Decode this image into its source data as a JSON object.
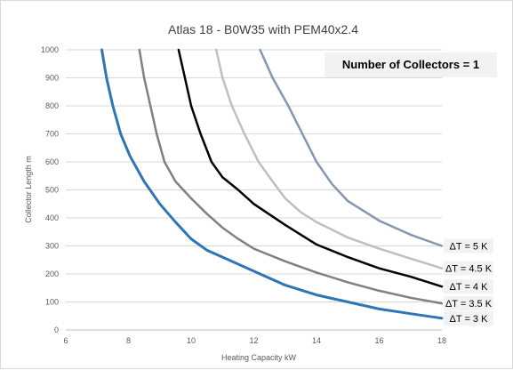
{
  "chart_data": {
    "type": "line",
    "title": "Atlas 18 - B0W35 with PEM40x2.4",
    "xlabel": "Heating Capacity  kW",
    "ylabel": "Collector Length  m",
    "xlim": [
      6,
      18
    ],
    "ylim": [
      0,
      1000
    ],
    "x_ticks": [
      "6",
      "8",
      "10",
      "12",
      "14",
      "16",
      "18"
    ],
    "y_ticks": [
      "0",
      "100",
      "200",
      "300",
      "400",
      "500",
      "600",
      "700",
      "800",
      "900",
      "1000"
    ],
    "grid": "horizontal",
    "annotation": "Number of Collectors = 1",
    "series": [
      {
        "name": "ΔT = 3 K",
        "color": "#2e75b6",
        "points": [
          [
            7.15,
            1000
          ],
          [
            7.3,
            900
          ],
          [
            7.5,
            800
          ],
          [
            7.75,
            700
          ],
          [
            8.05,
            620
          ],
          [
            8.5,
            530
          ],
          [
            9.0,
            450
          ],
          [
            9.5,
            385
          ],
          [
            10.0,
            325
          ],
          [
            10.5,
            285
          ],
          [
            11.0,
            260
          ],
          [
            12.0,
            210
          ],
          [
            13.0,
            160
          ],
          [
            14.0,
            125
          ],
          [
            15.0,
            100
          ],
          [
            16.0,
            75
          ],
          [
            17.0,
            58
          ],
          [
            18.0,
            42
          ]
        ]
      },
      {
        "name": "ΔT = 3.5 K",
        "color": "#808080",
        "points": [
          [
            8.35,
            1000
          ],
          [
            8.5,
            900
          ],
          [
            8.7,
            800
          ],
          [
            8.9,
            700
          ],
          [
            9.15,
            600
          ],
          [
            9.5,
            530
          ],
          [
            10.0,
            470
          ],
          [
            10.5,
            415
          ],
          [
            11.0,
            365
          ],
          [
            11.5,
            325
          ],
          [
            12.0,
            290
          ],
          [
            13.0,
            245
          ],
          [
            14.0,
            205
          ],
          [
            15.0,
            170
          ],
          [
            16.0,
            140
          ],
          [
            17.0,
            115
          ],
          [
            18.0,
            95
          ]
        ]
      },
      {
        "name": "ΔT = 4 K",
        "color": "#000000",
        "points": [
          [
            9.6,
            1000
          ],
          [
            9.8,
            900
          ],
          [
            10.0,
            800
          ],
          [
            10.3,
            700
          ],
          [
            10.65,
            600
          ],
          [
            11.0,
            545
          ],
          [
            11.5,
            500
          ],
          [
            12.0,
            450
          ],
          [
            13.0,
            375
          ],
          [
            14.0,
            305
          ],
          [
            15.0,
            260
          ],
          [
            16.0,
            220
          ],
          [
            17.0,
            190
          ],
          [
            18.0,
            155
          ]
        ]
      },
      {
        "name": "ΔT = 4.5 K",
        "color": "#bfbfbf",
        "points": [
          [
            10.8,
            1000
          ],
          [
            11.0,
            900
          ],
          [
            11.3,
            800
          ],
          [
            11.7,
            700
          ],
          [
            12.15,
            600
          ],
          [
            12.6,
            530
          ],
          [
            13.0,
            470
          ],
          [
            13.5,
            420
          ],
          [
            14.0,
            385
          ],
          [
            15.0,
            330
          ],
          [
            16.0,
            290
          ],
          [
            17.0,
            255
          ],
          [
            18.0,
            220
          ]
        ]
      },
      {
        "name": "ΔT = 5 K",
        "color": "#8497b0",
        "points": [
          [
            12.2,
            1000
          ],
          [
            12.6,
            900
          ],
          [
            13.1,
            800
          ],
          [
            13.55,
            700
          ],
          [
            14.0,
            600
          ],
          [
            14.5,
            520
          ],
          [
            15.0,
            460
          ],
          [
            16.0,
            390
          ],
          [
            17.0,
            340
          ],
          [
            18.0,
            300
          ]
        ]
      }
    ]
  }
}
